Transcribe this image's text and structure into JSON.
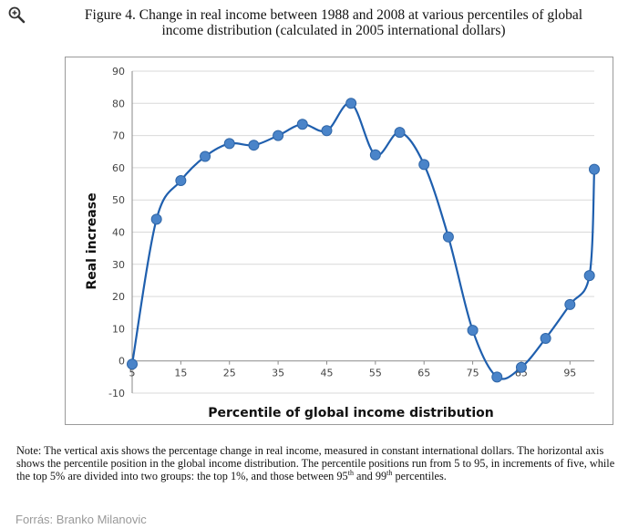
{
  "title_lines": [
    "Figure 4. Change in real income between 1988 and 2008 at various percentiles of global",
    "income distribution (calculated in 2005 international dollars)"
  ],
  "zoom_icon": "zoom-in-icon",
  "chart_data": {
    "type": "line",
    "smooth": true,
    "x": [
      5,
      10,
      15,
      20,
      25,
      30,
      35,
      40,
      45,
      50,
      55,
      60,
      65,
      70,
      75,
      80,
      85,
      90,
      95,
      99,
      100
    ],
    "y": [
      -1,
      44,
      56,
      63.5,
      67.5,
      67,
      70,
      73.5,
      71.5,
      80,
      64,
      71,
      61,
      38.5,
      9.5,
      -5,
      -2,
      7,
      17.5,
      26.5,
      59.5
    ],
    "xlabel": "Percentile of global income distribution",
    "ylabel": "Real increase",
    "xticks": [
      "5",
      "15",
      "25",
      "35",
      "45",
      "55",
      "65",
      "75",
      "85",
      "95"
    ],
    "yticks": [
      "-10",
      "0",
      "10",
      "20",
      "30",
      "40",
      "50",
      "60",
      "70",
      "80",
      "90"
    ],
    "xlim": [
      5,
      100
    ],
    "ylim": [
      -10,
      90
    ],
    "grid": true,
    "line_color": "#1f5fae",
    "marker_color": "#4a84c9"
  },
  "note": {
    "part1": "Note: The vertical axis shows the percentage change in real income, measured in constant international dollars. The horizontal axis shows the percentile position in the global income distribution. The percentile positions run from 5 to 95, in increments of five, while the top 5% are divided into two groups: the top 1%, and those between 95",
    "sup1": "th",
    "part2": " and 99",
    "sup2": "th",
    "part3": " percentiles."
  },
  "source": "Forrás: Branko Milanovic"
}
